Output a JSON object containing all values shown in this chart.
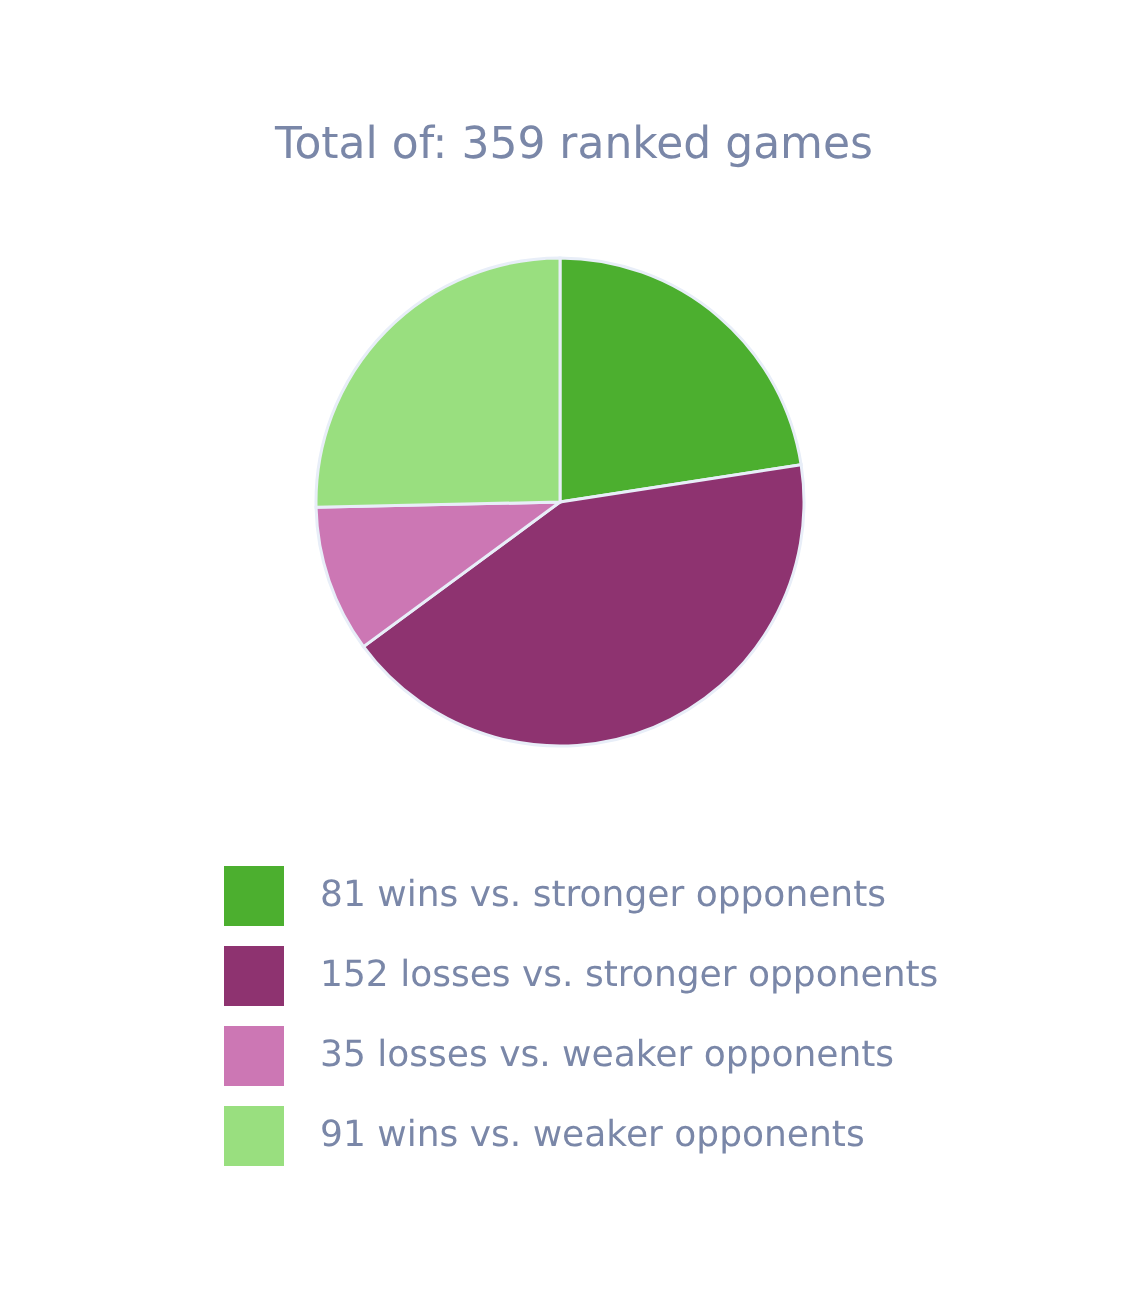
{
  "chart_data": {
    "type": "pie",
    "title": "Total of: 359 ranked games",
    "categories": [
      "81 wins vs. stronger opponents",
      "152 losses vs. stronger opponents",
      "35 losses vs. weaker opponents",
      "91 wins vs. weaker opponents"
    ],
    "values": [
      81,
      152,
      35,
      91
    ],
    "colors": [
      "#4caf2f",
      "#8e3370",
      "#cc77b4",
      "#99df7f"
    ],
    "legend": "bottom"
  }
}
